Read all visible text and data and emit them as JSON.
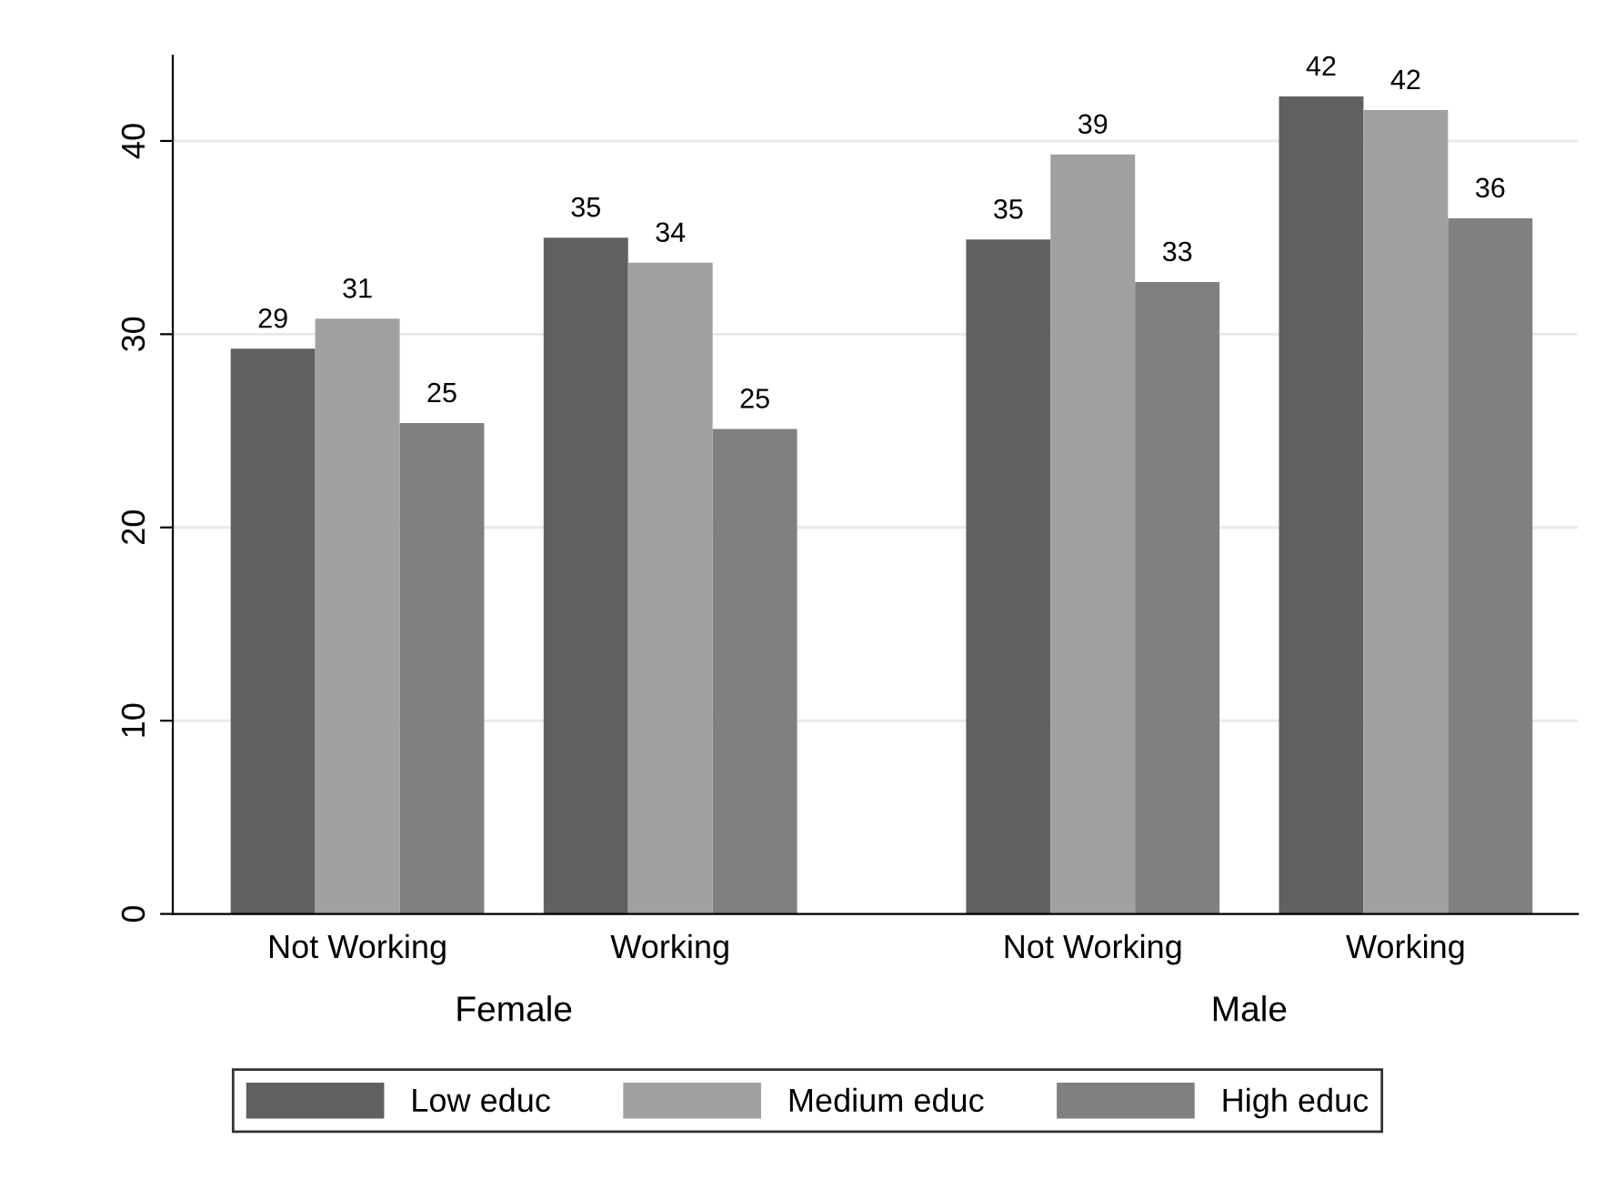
{
  "chart_data": {
    "type": "bar",
    "categories": [
      "Not Working",
      "Working",
      "Not Working",
      "Working"
    ],
    "series": [
      {
        "name": "Low educ",
        "color": "#606060",
        "values": [
          29.25,
          35.0,
          34.9,
          42.3
        ],
        "value_labels": [
          "29",
          "35",
          "35",
          "42"
        ]
      },
      {
        "name": "Medium educ",
        "color": "#a0a0a0",
        "values": [
          30.8,
          33.7,
          39.3,
          41.6
        ],
        "value_labels": [
          "31",
          "34",
          "39",
          "42"
        ]
      },
      {
        "name": "High educ",
        "color": "#808080",
        "values": [
          25.4,
          25.1,
          32.7,
          36.0
        ],
        "value_labels": [
          "25",
          "25",
          "33",
          "36"
        ]
      }
    ],
    "annotations": [
      "Female",
      "Male"
    ],
    "ylim": [
      0,
      44.4
    ],
    "yticks": [
      0,
      10,
      20,
      30,
      40
    ],
    "grid": "y",
    "legend": "bottom"
  }
}
